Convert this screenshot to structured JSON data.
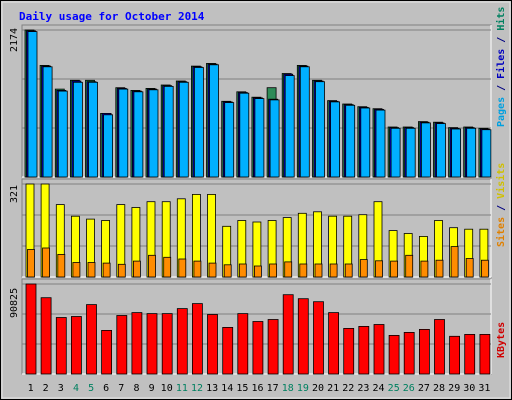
{
  "chart_data": [
    {
      "type": "bar",
      "title": "Daily usage for October 2014",
      "ymax_label": "2174",
      "ylim": [
        0,
        2174
      ],
      "right_label": [
        {
          "text": "Pages",
          "color": "#00a0e0"
        },
        {
          "text": " / ",
          "color": "#000080"
        },
        {
          "text": "Files",
          "color": "#0000c0"
        },
        {
          "text": " / ",
          "color": "#000080"
        },
        {
          "text": "Hits",
          "color": "#008060"
        }
      ],
      "series": [
        {
          "key": "hits",
          "color": "#2e8b57",
          "values": [
            2174,
            1650,
            1300,
            1430,
            1430,
            940,
            1320,
            1280,
            1310,
            1360,
            1420,
            1640,
            1680,
            1120,
            1260,
            1180,
            1320,
            1530,
            1650,
            1430,
            1130,
            1080,
            1040,
            1010,
            740,
            740,
            820,
            810,
            730,
            740,
            720
          ]
        },
        {
          "key": "files",
          "color": "#0000c8",
          "values": [
            2160,
            1640,
            1280,
            1420,
            1410,
            940,
            1310,
            1270,
            1300,
            1350,
            1410,
            1630,
            1670,
            1110,
            1250,
            1170,
            1150,
            1520,
            1640,
            1420,
            1120,
            1070,
            1030,
            1000,
            730,
            730,
            810,
            800,
            720,
            730,
            710
          ]
        },
        {
          "key": "pages",
          "color": "#00b0ff",
          "values": [
            2150,
            1630,
            1270,
            1400,
            1400,
            920,
            1300,
            1260,
            1290,
            1340,
            1400,
            1620,
            1660,
            1100,
            1240,
            1160,
            1140,
            1500,
            1630,
            1410,
            1110,
            1060,
            1020,
            990,
            720,
            720,
            800,
            790,
            710,
            720,
            700
          ]
        }
      ]
    },
    {
      "type": "bar",
      "ymax_label": "321",
      "ylim": [
        0,
        321
      ],
      "right_label": [
        {
          "text": "Sites",
          "color": "#e08000"
        },
        {
          "text": " / ",
          "color": "#000080"
        },
        {
          "text": "Visits",
          "color": "#d0c000"
        }
      ],
      "series": [
        {
          "key": "visits",
          "color": "#ffff00",
          "values": [
            321,
            321,
            250,
            210,
            200,
            195,
            250,
            240,
            260,
            260,
            270,
            285,
            285,
            175,
            195,
            190,
            195,
            205,
            220,
            225,
            210,
            210,
            215,
            260,
            160,
            150,
            140,
            195,
            170,
            165,
            165
          ]
        },
        {
          "key": "sites",
          "color": "#ff8c00",
          "values": [
            95,
            100,
            78,
            50,
            50,
            48,
            44,
            55,
            75,
            68,
            62,
            55,
            48,
            42,
            45,
            38,
            45,
            52,
            45,
            45,
            45,
            45,
            60,
            56,
            55,
            75,
            55,
            58,
            105,
            64,
            58
          ]
        }
      ]
    },
    {
      "type": "bar",
      "ymax_label": "90825",
      "ylim": [
        0,
        90825
      ],
      "right_label": [
        {
          "text": "KBytes",
          "color": "#d00000"
        }
      ],
      "series": [
        {
          "key": "kbytes",
          "color": "#ff0000",
          "values": [
            90825,
            77000,
            57000,
            58000,
            70000,
            44000,
            59000,
            62000,
            61000,
            61000,
            66000,
            71000,
            60000,
            47000,
            61000,
            53000,
            55000,
            80000,
            76000,
            73000,
            62000,
            46000,
            48000,
            50000,
            39000,
            42000,
            45000,
            55000,
            38000,
            40000,
            40000
          ]
        }
      ]
    }
  ],
  "days": [
    "1",
    "2",
    "3",
    "4",
    "5",
    "6",
    "7",
    "8",
    "9",
    "10",
    "11",
    "12",
    "13",
    "14",
    "15",
    "16",
    "17",
    "18",
    "19",
    "20",
    "21",
    "22",
    "23",
    "24",
    "25",
    "26",
    "27",
    "28",
    "29",
    "30",
    "31"
  ],
  "weekend_days": [
    4,
    5,
    11,
    12,
    18,
    19,
    25,
    26
  ],
  "colors": {
    "background": "#c0c0c0",
    "title": "#0000ff",
    "gridline": "#808080",
    "weekday_label": "#000000",
    "weekend_label": "#008060",
    "outline": "#000000"
  }
}
